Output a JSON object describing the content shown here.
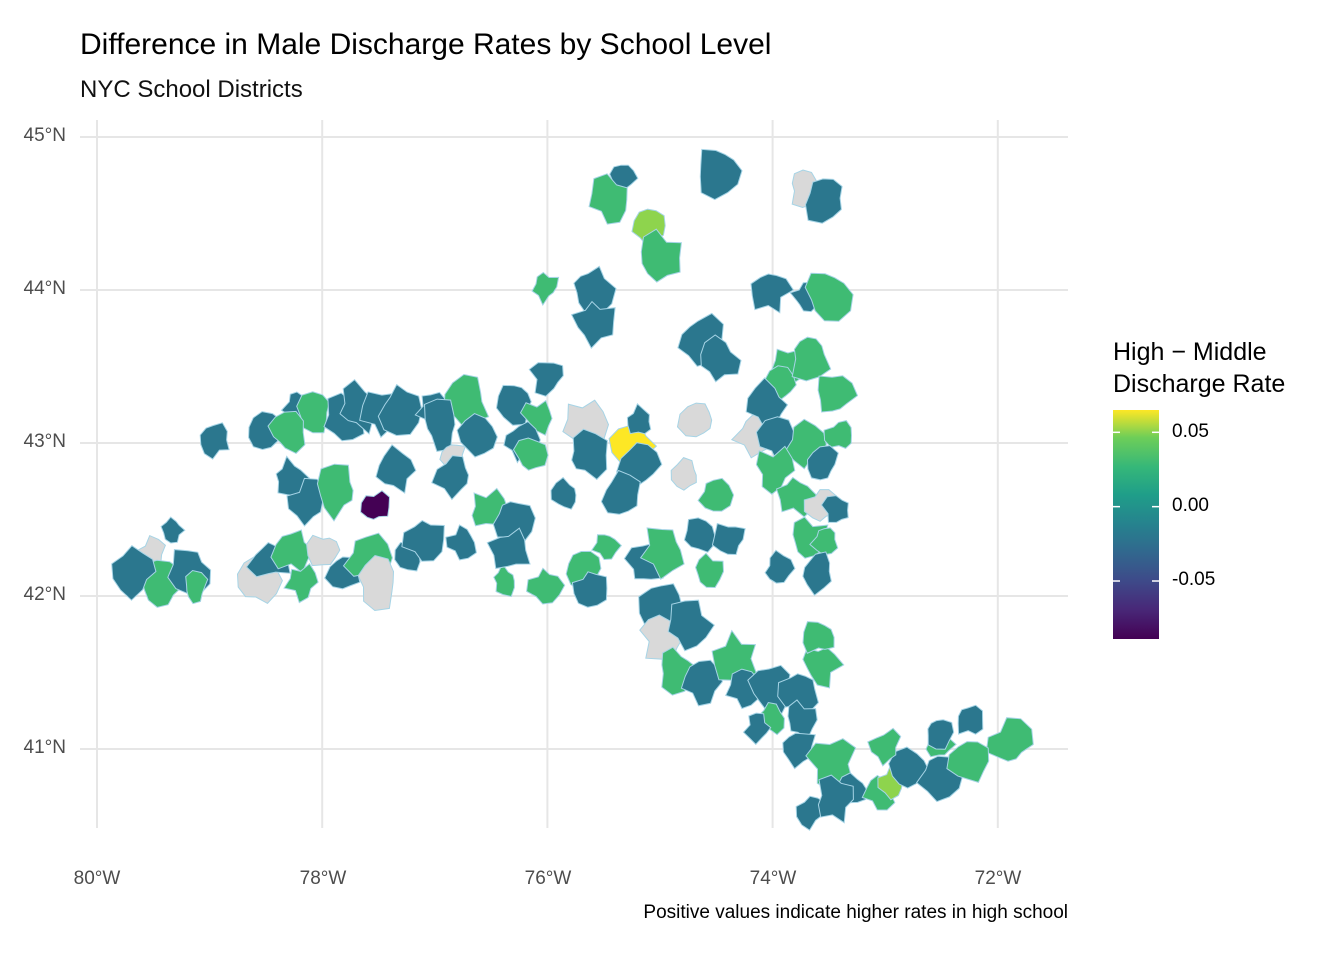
{
  "chart_data": {
    "type": "choropleth",
    "title": "Difference in Male Discharge Rates by School Level",
    "subtitle": "NYC School Districts",
    "caption": "Positive values indicate higher rates in high school",
    "legend": {
      "title_lines": [
        "High − Middle",
        "Discharge Rate"
      ],
      "ticks": [
        "0.05",
        "0.00",
        "-0.05"
      ],
      "tick_values": [
        0.05,
        0.0,
        -0.05
      ],
      "range": [
        -0.089,
        0.065
      ],
      "palette": "viridis",
      "placement": "right"
    },
    "na_color": "#d9d9d9",
    "border_color": "#a6d4e6",
    "grid": true,
    "x_axis": {
      "ticks": [
        "80°W",
        "78°W",
        "76°W",
        "74°W",
        "72°W"
      ],
      "tick_values": [
        -80,
        -78,
        -76,
        -74,
        -72
      ],
      "range": [
        -80.15,
        -71.4
      ]
    },
    "y_axis": {
      "ticks": [
        "45°N",
        "44°N",
        "43°N",
        "42°N",
        "41°N"
      ],
      "tick_values": [
        45,
        44,
        43,
        42,
        41
      ],
      "range": [
        40.5,
        45.1
      ]
    },
    "districts": [
      [
        -75.33,
        44.73,
        -0.02
      ],
      [
        -75.44,
        44.59,
        0.03
      ],
      [
        -74.48,
        44.78,
        -0.02
      ],
      [
        -73.71,
        44.67,
        null
      ],
      [
        -73.53,
        44.6,
        -0.02
      ],
      [
        -75.09,
        44.42,
        0.05
      ],
      [
        -75.0,
        44.21,
        0.03
      ],
      [
        -76.02,
        44.02,
        0.03
      ],
      [
        -75.62,
        44.01,
        -0.02
      ],
      [
        -75.58,
        43.79,
        -0.02
      ],
      [
        -74.02,
        44.0,
        -0.02
      ],
      [
        -73.71,
        43.95,
        -0.02
      ],
      [
        -73.51,
        43.97,
        0.03
      ],
      [
        -74.64,
        43.67,
        -0.02
      ],
      [
        -74.48,
        43.54,
        -0.02
      ],
      [
        -73.85,
        43.51,
        0.03
      ],
      [
        -73.93,
        43.38,
        0.03
      ],
      [
        -73.67,
        43.58,
        0.03
      ],
      [
        -73.45,
        43.31,
        0.03
      ],
      [
        -75.99,
        43.44,
        -0.02
      ],
      [
        -78.21,
        43.25,
        -0.02
      ],
      [
        -78.06,
        43.2,
        0.03
      ],
      [
        -78.51,
        43.07,
        -0.02
      ],
      [
        -78.31,
        43.07,
        0.03
      ],
      [
        -78.95,
        43.02,
        -0.02
      ],
      [
        -77.8,
        43.15,
        -0.02
      ],
      [
        -77.68,
        43.23,
        -0.02
      ],
      [
        -77.45,
        43.2,
        -0.02
      ],
      [
        -77.31,
        43.22,
        -0.02
      ],
      [
        -77.02,
        43.22,
        -0.02
      ],
      [
        -76.71,
        43.27,
        0.03
      ],
      [
        -76.95,
        43.12,
        -0.02
      ],
      [
        -76.84,
        42.92,
        null
      ],
      [
        -76.62,
        43.04,
        -0.02
      ],
      [
        -76.28,
        43.27,
        -0.02
      ],
      [
        -76.08,
        43.16,
        0.03
      ],
      [
        -76.24,
        43.02,
        -0.02
      ],
      [
        -76.15,
        42.92,
        0.03
      ],
      [
        -75.67,
        43.12,
        null
      ],
      [
        -75.65,
        42.92,
        -0.02
      ],
      [
        -75.25,
        42.98,
        0.065
      ],
      [
        -75.18,
        42.86,
        -0.02
      ],
      [
        -74.66,
        43.15,
        null
      ],
      [
        -75.18,
        43.14,
        -0.02
      ],
      [
        -74.77,
        42.79,
        null
      ],
      [
        -74.16,
        43.07,
        null
      ],
      [
        -74.04,
        43.25,
        -0.02
      ],
      [
        -73.93,
        43.02,
        -0.02
      ],
      [
        -73.69,
        42.99,
        0.03
      ],
      [
        -73.4,
        43.05,
        0.03
      ],
      [
        -73.56,
        42.86,
        -0.02
      ],
      [
        -78.29,
        42.77,
        -0.02
      ],
      [
        -78.13,
        42.61,
        -0.02
      ],
      [
        -77.86,
        42.69,
        0.03
      ],
      [
        -77.53,
        42.58,
        -0.089
      ],
      [
        -77.35,
        42.82,
        -0.02
      ],
      [
        -76.82,
        42.79,
        -0.02
      ],
      [
        -76.53,
        42.56,
        0.03
      ],
      [
        -76.31,
        42.51,
        -0.02
      ],
      [
        -75.84,
        42.66,
        -0.02
      ],
      [
        -75.34,
        42.66,
        -0.02
      ],
      [
        -74.51,
        42.66,
        0.03
      ],
      [
        -73.98,
        42.82,
        0.03
      ],
      [
        -73.8,
        42.66,
        0.03
      ],
      [
        -73.56,
        42.59,
        null
      ],
      [
        -73.42,
        42.56,
        -0.02
      ],
      [
        -73.69,
        42.37,
        0.03
      ],
      [
        -73.53,
        42.37,
        0.03
      ],
      [
        -79.51,
        42.27,
        null
      ],
      [
        -79.44,
        42.07,
        0.03
      ],
      [
        -79.66,
        42.16,
        -0.02
      ],
      [
        -79.33,
        42.43,
        -0.02
      ],
      [
        -79.17,
        42.17,
        -0.02
      ],
      [
        -79.13,
        42.05,
        0.03
      ],
      [
        -78.57,
        42.1,
        null
      ],
      [
        -78.46,
        42.24,
        -0.02
      ],
      [
        -78.26,
        42.3,
        0.03
      ],
      [
        -78.18,
        42.09,
        0.03
      ],
      [
        -77.98,
        42.3,
        null
      ],
      [
        -77.8,
        42.16,
        -0.02
      ],
      [
        -77.59,
        42.25,
        0.03
      ],
      [
        -77.5,
        42.09,
        null
      ],
      [
        -77.22,
        42.27,
        -0.02
      ],
      [
        -77.09,
        42.37,
        -0.02
      ],
      [
        -76.76,
        42.35,
        -0.02
      ],
      [
        -76.38,
        42.1,
        0.03
      ],
      [
        -76.33,
        42.3,
        -0.02
      ],
      [
        -76.02,
        42.07,
        0.03
      ],
      [
        -75.68,
        42.18,
        0.03
      ],
      [
        -75.62,
        42.05,
        -0.02
      ],
      [
        -75.48,
        42.33,
        0.03
      ],
      [
        -75.13,
        42.2,
        -0.02
      ],
      [
        -74.96,
        42.3,
        0.03
      ],
      [
        -74.64,
        42.4,
        -0.02
      ],
      [
        -74.38,
        42.37,
        -0.02
      ],
      [
        -74.57,
        42.16,
        0.03
      ],
      [
        -73.95,
        42.18,
        -0.02
      ],
      [
        -73.6,
        42.16,
        -0.02
      ],
      [
        -74.96,
        41.94,
        -0.02
      ],
      [
        -74.98,
        41.73,
        null
      ],
      [
        -74.75,
        41.81,
        -0.02
      ],
      [
        -74.86,
        41.52,
        0.03
      ],
      [
        -74.63,
        41.44,
        -0.02
      ],
      [
        -74.33,
        41.59,
        0.03
      ],
      [
        -74.25,
        41.39,
        -0.02
      ],
      [
        -74.01,
        41.4,
        -0.02
      ],
      [
        -73.76,
        41.39,
        -0.02
      ],
      [
        -73.58,
        41.55,
        0.03
      ],
      [
        -73.58,
        41.73,
        0.03
      ],
      [
        -74.02,
        41.2,
        0.03
      ],
      [
        -74.13,
        41.14,
        -0.02
      ],
      [
        -73.76,
        41.19,
        -0.02
      ],
      [
        -73.78,
        41.01,
        -0.02
      ],
      [
        -73.47,
        40.9,
        0.03
      ],
      [
        -73.29,
        40.73,
        -0.02
      ],
      [
        -73.65,
        40.59,
        -0.02
      ],
      [
        -73.05,
        40.72,
        0.03
      ],
      [
        -72.93,
        40.78,
        0.05
      ],
      [
        -72.78,
        40.86,
        -0.02
      ],
      [
        -72.51,
        41.03,
        0.03
      ],
      [
        -72.53,
        41.11,
        -0.02
      ],
      [
        -72.25,
        41.19,
        -0.02
      ],
      [
        -71.89,
        41.03,
        0.03
      ],
      [
        -72.51,
        40.83,
        -0.02
      ],
      [
        -73.0,
        41.01,
        0.03
      ],
      [
        -72.25,
        40.92,
        0.03
      ],
      [
        -73.45,
        40.67,
        -0.02
      ]
    ]
  }
}
